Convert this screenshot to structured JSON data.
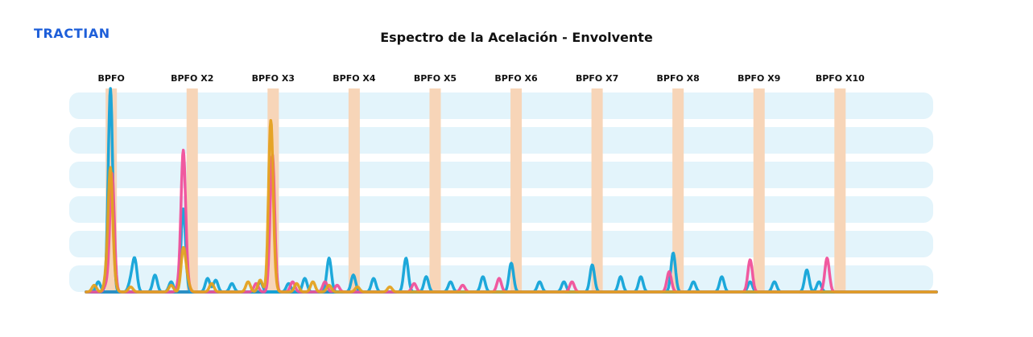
{
  "brand": {
    "logo_text": "TRACTIAN"
  },
  "colors": {
    "logo": "#1e5fd9",
    "band": "#e3f4fb",
    "marker": "#f7d5b8",
    "series_blue": "#12a3d8",
    "series_pink": "#f0509a",
    "series_orange": "#e4a11f",
    "baseline": "#2a8fc4"
  },
  "chart_data": {
    "type": "line",
    "title": "Espectro de la Acelación - Envolvente",
    "xlabel": "",
    "ylabel": "",
    "xlim": [
      0,
      10.5
    ],
    "ylim": [
      0,
      6
    ],
    "grid": "horizontal-bands",
    "legend": "none",
    "markers": [
      {
        "label": "BPFO",
        "x": 0.31
      },
      {
        "label": "BPFO X2",
        "x": 1.31
      },
      {
        "label": "BPFO X3",
        "x": 2.31
      },
      {
        "label": "BPFO X4",
        "x": 3.31
      },
      {
        "label": "BPFO X5",
        "x": 4.31
      },
      {
        "label": "BPFO X6",
        "x": 5.31
      },
      {
        "label": "BPFO X7",
        "x": 6.31
      },
      {
        "label": "BPFO X8",
        "x": 7.31
      },
      {
        "label": "BPFO X9",
        "x": 8.31
      },
      {
        "label": "BPFO X10",
        "x": 9.31
      }
    ],
    "series": [
      {
        "color": "#12a3d8",
        "peaks": [
          [
            0.15,
            0.3
          ],
          [
            0.3,
            6.0
          ],
          [
            0.55,
            0.3
          ],
          [
            0.6,
            0.95
          ],
          [
            0.85,
            0.5
          ],
          [
            1.05,
            0.3
          ],
          [
            1.2,
            2.45
          ],
          [
            1.5,
            0.4
          ],
          [
            1.6,
            0.35
          ],
          [
            1.8,
            0.25
          ],
          [
            2.15,
            0.3
          ],
          [
            2.5,
            0.25
          ],
          [
            2.7,
            0.4
          ],
          [
            3.0,
            1.0
          ],
          [
            3.3,
            0.5
          ],
          [
            3.55,
            0.4
          ],
          [
            3.95,
            1.0
          ],
          [
            4.2,
            0.45
          ],
          [
            4.5,
            0.3
          ],
          [
            4.9,
            0.45
          ],
          [
            5.25,
            0.85
          ],
          [
            5.6,
            0.3
          ],
          [
            5.9,
            0.3
          ],
          [
            6.25,
            0.8
          ],
          [
            6.6,
            0.45
          ],
          [
            6.85,
            0.45
          ],
          [
            7.25,
            1.15
          ],
          [
            7.5,
            0.3
          ],
          [
            7.85,
            0.45
          ],
          [
            8.2,
            0.3
          ],
          [
            8.5,
            0.3
          ],
          [
            8.9,
            0.65
          ],
          [
            9.05,
            0.3
          ]
        ]
      },
      {
        "color": "#f0509a",
        "peaks": [
          [
            0.25,
            0.2
          ],
          [
            0.32,
            3.5
          ],
          [
            1.15,
            0.2
          ],
          [
            1.2,
            4.1
          ],
          [
            1.25,
            0.2
          ],
          [
            2.1,
            0.25
          ],
          [
            2.3,
            4.05
          ],
          [
            2.55,
            0.3
          ],
          [
            2.95,
            0.3
          ],
          [
            3.1,
            0.2
          ],
          [
            4.05,
            0.25
          ],
          [
            4.65,
            0.2
          ],
          [
            5.1,
            0.4
          ],
          [
            6.0,
            0.3
          ],
          [
            7.2,
            0.6
          ],
          [
            8.2,
            0.95
          ],
          [
            9.15,
            1.0
          ]
        ]
      },
      {
        "color": "#e4a11f",
        "peaks": [
          [
            0.1,
            0.2
          ],
          [
            0.25,
            0.4
          ],
          [
            0.3,
            3.55
          ],
          [
            0.35,
            0.2
          ],
          [
            0.55,
            0.15
          ],
          [
            1.05,
            0.2
          ],
          [
            1.2,
            1.25
          ],
          [
            1.25,
            0.3
          ],
          [
            1.55,
            0.25
          ],
          [
            2.0,
            0.3
          ],
          [
            2.15,
            0.35
          ],
          [
            2.28,
            4.95
          ],
          [
            2.32,
            0.3
          ],
          [
            2.6,
            0.25
          ],
          [
            2.8,
            0.3
          ],
          [
            3.0,
            0.2
          ],
          [
            3.35,
            0.15
          ],
          [
            3.75,
            0.15
          ]
        ]
      }
    ]
  }
}
